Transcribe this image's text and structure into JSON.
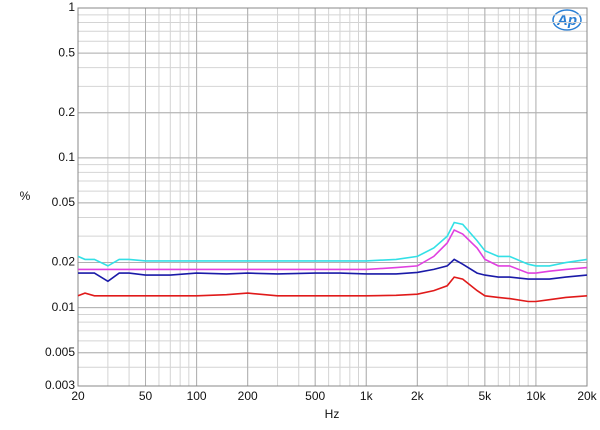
{
  "chart_data": {
    "type": "line",
    "x_label": "Hz",
    "y_label": "%",
    "logo": "Ap",
    "xscale": "log",
    "yscale": "log",
    "grid": true,
    "xlim": [
      20,
      20000
    ],
    "ylim": [
      0.003,
      1
    ],
    "xticks": [
      20,
      50,
      100,
      200,
      500,
      {
        "value": 1000,
        "label": "1k"
      },
      {
        "value": 2000,
        "label": "2k"
      },
      {
        "value": 5000,
        "label": "5k"
      },
      {
        "value": 10000,
        "label": "10k"
      },
      {
        "value": 20000,
        "label": "20k"
      }
    ],
    "yticks": [
      1,
      0.5,
      0.2,
      0.1,
      0.05,
      0.02,
      0.01,
      0.005,
      0.003
    ],
    "x": [
      20,
      22,
      25,
      30,
      35,
      40,
      50,
      70,
      100,
      150,
      200,
      300,
      500,
      700,
      1000,
      1500,
      2000,
      2500,
      3000,
      3300,
      3700,
      4500,
      5000,
      6000,
      7000,
      9000,
      10000,
      12000,
      15000,
      20000
    ],
    "series": [
      {
        "color": "#33e0e6",
        "values": [
          0.022,
          0.021,
          0.021,
          0.019,
          0.021,
          0.021,
          0.0205,
          0.0205,
          0.0205,
          0.0205,
          0.0205,
          0.0205,
          0.0205,
          0.0205,
          0.0205,
          0.021,
          0.022,
          0.025,
          0.03,
          0.037,
          0.036,
          0.028,
          0.024,
          0.022,
          0.022,
          0.0195,
          0.019,
          0.019,
          0.02,
          0.021
        ]
      },
      {
        "color": "#e040e0",
        "values": [
          0.018,
          0.018,
          0.018,
          0.018,
          0.018,
          0.018,
          0.018,
          0.018,
          0.018,
          0.018,
          0.018,
          0.018,
          0.018,
          0.018,
          0.018,
          0.0185,
          0.019,
          0.022,
          0.027,
          0.033,
          0.031,
          0.025,
          0.021,
          0.019,
          0.019,
          0.017,
          0.017,
          0.0175,
          0.018,
          0.0185
        ]
      },
      {
        "color": "#1a1aa8",
        "values": [
          0.017,
          0.017,
          0.017,
          0.015,
          0.017,
          0.017,
          0.0165,
          0.0165,
          0.017,
          0.0168,
          0.017,
          0.0168,
          0.017,
          0.017,
          0.0168,
          0.0168,
          0.0172,
          0.018,
          0.019,
          0.021,
          0.0195,
          0.017,
          0.0165,
          0.016,
          0.016,
          0.0155,
          0.0155,
          0.0155,
          0.016,
          0.0165
        ]
      },
      {
        "color": "#e01a1a",
        "values": [
          0.012,
          0.0125,
          0.012,
          0.012,
          0.012,
          0.012,
          0.012,
          0.012,
          0.012,
          0.0122,
          0.0125,
          0.012,
          0.012,
          0.012,
          0.012,
          0.0121,
          0.0123,
          0.013,
          0.014,
          0.016,
          0.0155,
          0.013,
          0.012,
          0.0117,
          0.0115,
          0.011,
          0.011,
          0.0113,
          0.0117,
          0.012
        ]
      }
    ]
  }
}
